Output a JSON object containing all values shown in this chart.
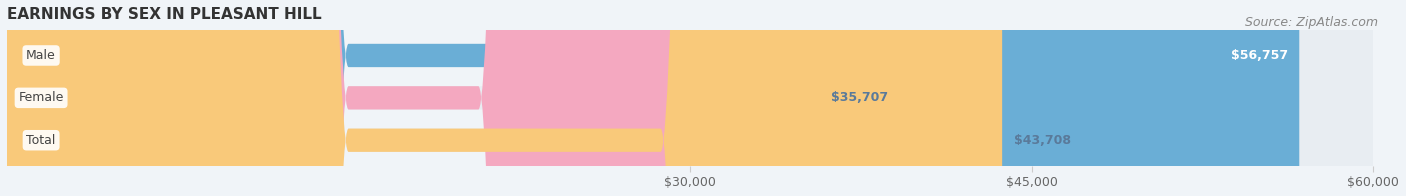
{
  "title": "EARNINGS BY SEX IN PLEASANT HILL",
  "source": "Source: ZipAtlas.com",
  "categories": [
    "Male",
    "Female",
    "Total"
  ],
  "values": [
    56757,
    35707,
    43708
  ],
  "bar_colors": [
    "#6aaed6",
    "#f4a8c0",
    "#f9c97a"
  ],
  "label_colors": [
    "#ffffff",
    "#5a7a9a",
    "#5a7a9a"
  ],
  "bar_labels": [
    "$56,757",
    "$35,707",
    "$43,708"
  ],
  "background_color": "#f0f4f8",
  "bar_bg_color": "#e8edf2",
  "xmin": 0,
  "xmax": 60000,
  "xticks": [
    30000,
    45000,
    60000
  ],
  "xtick_labels": [
    "$30,000",
    "$45,000",
    "$60,000"
  ],
  "title_fontsize": 11,
  "source_fontsize": 9,
  "label_fontsize": 9,
  "tick_fontsize": 9
}
